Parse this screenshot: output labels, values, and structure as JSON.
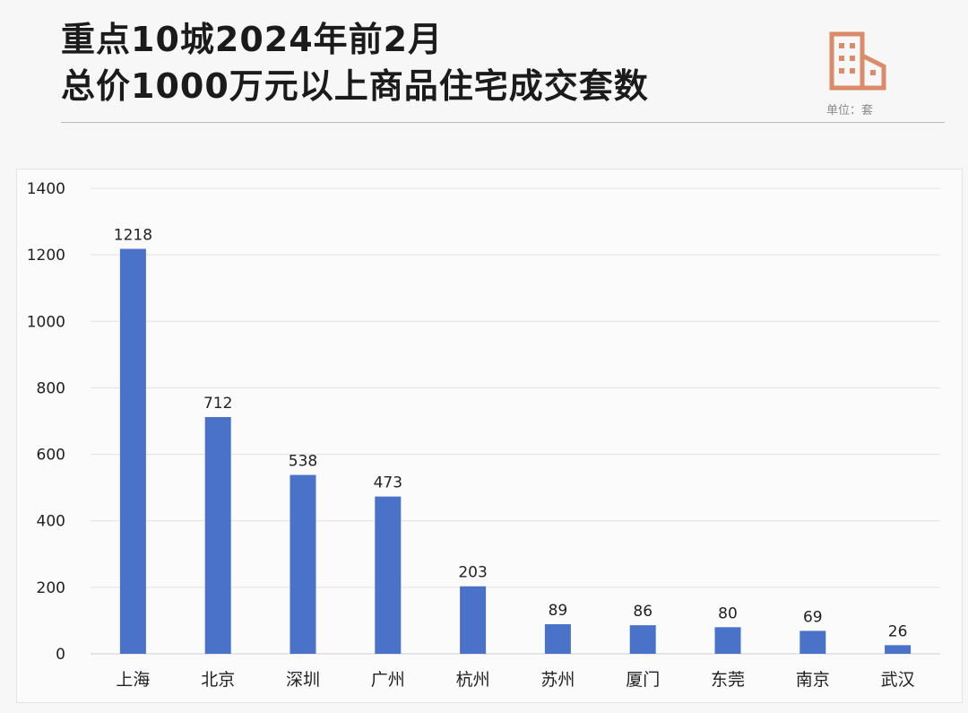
{
  "header": {
    "title_line1": "重点10城2024年前2月",
    "title_line2": "总价1000万元以上商品住宅成交套数",
    "unit": "单位：套",
    "icon": "building-icon",
    "icon_color": "#d98b6a"
  },
  "chart_data": {
    "type": "bar",
    "title": "重点10城2024年前2月 总价1000万元以上商品住宅成交套数",
    "categories": [
      "上海",
      "北京",
      "深圳",
      "广州",
      "杭州",
      "苏州",
      "厦门",
      "东莞",
      "南京",
      "武汉"
    ],
    "values": [
      1218,
      712,
      538,
      473,
      203,
      89,
      86,
      80,
      69,
      26
    ],
    "ylim": [
      0,
      1400
    ],
    "yticks": [
      0,
      200,
      400,
      600,
      800,
      1000,
      1200,
      1400
    ],
    "grid": true,
    "bar_color": "#4a72c8",
    "data_labels": true
  }
}
